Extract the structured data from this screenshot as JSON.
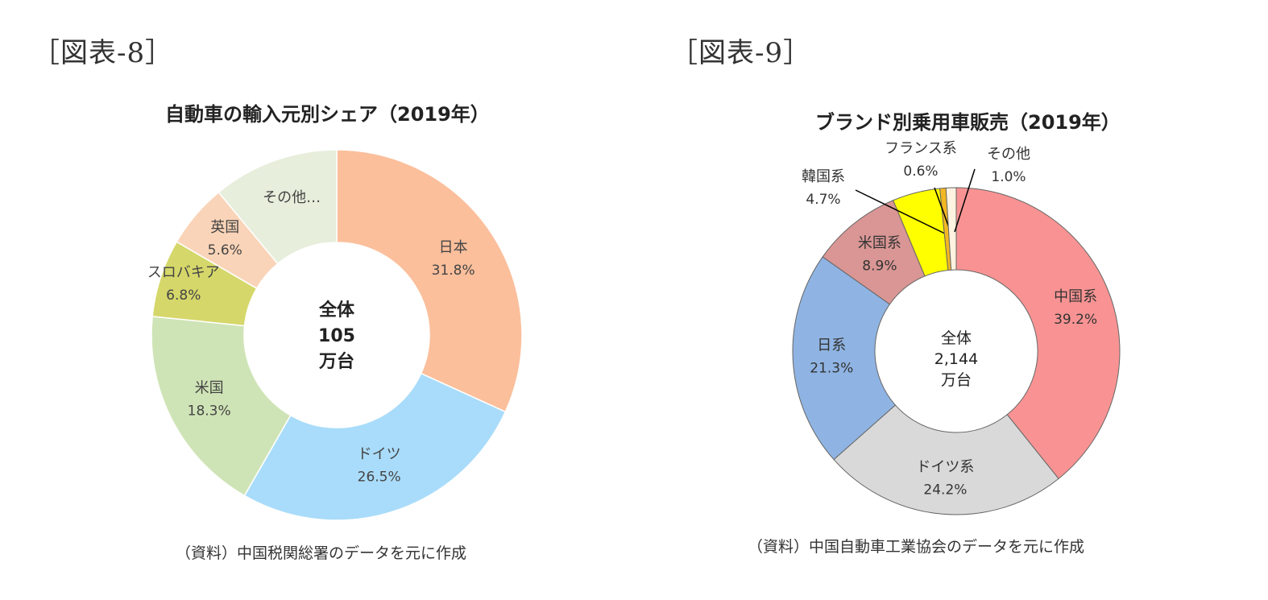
{
  "figures": [
    {
      "label": "［図表-8］",
      "source": "（資料）中国税関総署のデータを元に作成"
    },
    {
      "label": "［図表-9］",
      "source": "（資料）中国自動車工業協会のデータを元に作成"
    }
  ],
  "chart_data": [
    {
      "type": "pie",
      "title": "自動車の輸入元別シェア（2019年）",
      "center_label": [
        "全体",
        "105",
        "万台"
      ],
      "slices": [
        {
          "name": "日本",
          "value": 31.8,
          "value_label": "31.8%",
          "color": "#fbbf9c"
        },
        {
          "name": "ドイツ",
          "value": 26.5,
          "value_label": "26.5%",
          "color": "#a9dcfa"
        },
        {
          "name": "米国",
          "value": 18.3,
          "value_label": "18.3%",
          "color": "#cfe4b6"
        },
        {
          "name": "スロバキア",
          "value": 6.8,
          "value_label": "6.8%",
          "color": "#d5d76a"
        },
        {
          "name": "英国",
          "value": 5.6,
          "value_label": "5.6%",
          "color": "#fad4b8"
        },
        {
          "name": "その他…",
          "value": 11.0,
          "value_label": "",
          "color": "#e7eedc"
        }
      ]
    },
    {
      "type": "pie",
      "title": "ブランド別乗用車販売（2019年）",
      "center_label": [
        "全体",
        "2,144",
        "万台"
      ],
      "slices": [
        {
          "name": "中国系",
          "value": 39.2,
          "value_label": "39.2%",
          "color": "#f99393"
        },
        {
          "name": "ドイツ系",
          "value": 24.2,
          "value_label": "24.2%",
          "color": "#d9d9d9"
        },
        {
          "name": "日系",
          "value": 21.3,
          "value_label": "21.3%",
          "color": "#8fb4e3"
        },
        {
          "name": "米国系",
          "value": 8.9,
          "value_label": "8.9%",
          "color": "#d99694"
        },
        {
          "name": "韓国系",
          "value": 4.7,
          "value_label": "4.7%",
          "color": "#ffff00"
        },
        {
          "name": "フランス系",
          "value": 0.6,
          "value_label": "0.6%",
          "color": "#f2b722"
        },
        {
          "name": "その他",
          "value": 1.0,
          "value_label": "1.0%",
          "color": "#fdf3e0"
        }
      ]
    }
  ]
}
